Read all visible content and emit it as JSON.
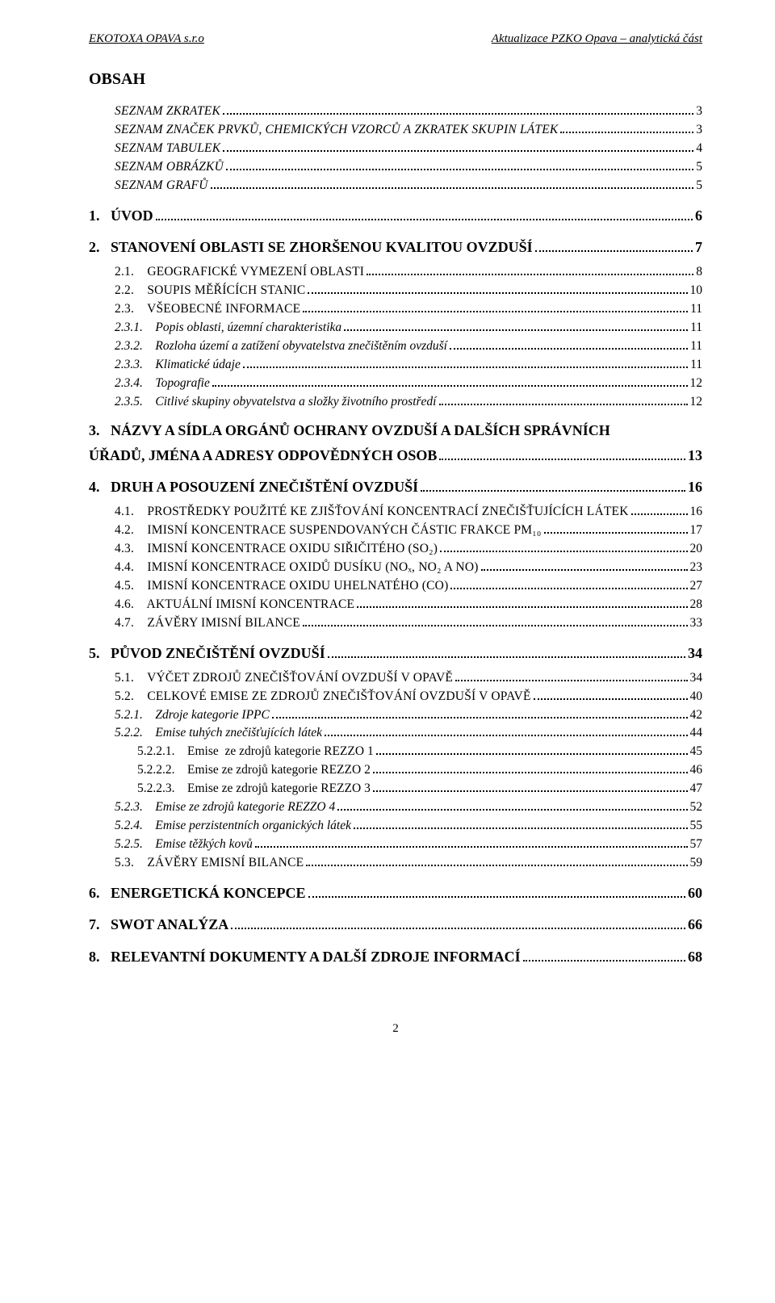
{
  "header": {
    "left": "EKOTOXA OPAVA s.r.o",
    "right": "Aktualizace PZKO Opava – analytická část"
  },
  "title": "OBSAH",
  "toc": [
    {
      "level": 0,
      "label": "SEZNAM ZKRATEK",
      "page": "3",
      "style": "smallcaps italic"
    },
    {
      "level": 0,
      "label": "SEZNAM ZNAČEK PRVKŮ, CHEMICKÝCH VZORCŮ A ZKRATEK SKUPIN LÁTEK",
      "page": "3",
      "style": "smallcaps italic"
    },
    {
      "level": 0,
      "label": "SEZNAM TABULEK",
      "page": "4",
      "style": "smallcaps italic"
    },
    {
      "level": 0,
      "label": "SEZNAM OBRÁZKŮ",
      "page": "5",
      "style": "smallcaps italic"
    },
    {
      "level": 0,
      "label": "SEZNAM GRAFŮ",
      "page": "5",
      "style": "smallcaps italic"
    },
    {
      "level": "h1",
      "num": "1.",
      "label": "ÚVOD",
      "page": "6"
    },
    {
      "level": "h1",
      "num": "2.",
      "label": "STANOVENÍ OBLASTI SE ZHORŠENOU KVALITOU OVZDUŠÍ",
      "page": "7"
    },
    {
      "level": 1,
      "label": "2.1.    GEOGRAFICKÉ VYMEZENÍ OBLASTI",
      "page": "8",
      "style": "smallcaps"
    },
    {
      "level": 1,
      "label": "2.2.    SOUPIS MĚŘÍCÍCH STANIC",
      "page": "10",
      "style": "smallcaps"
    },
    {
      "level": 1,
      "label": "2.3.    VŠEOBECNÉ INFORMACE",
      "page": "11",
      "style": "smallcaps"
    },
    {
      "level": 2,
      "label": "2.3.1.    Popis oblasti, územní charakteristika",
      "page": "11",
      "style": "italic"
    },
    {
      "level": 2,
      "label": "2.3.2.    Rozloha území a zatížení obyvatelstva znečištěním ovzduší",
      "page": "11",
      "style": "italic"
    },
    {
      "level": 2,
      "label": "2.3.3.    Klimatické údaje",
      "page": "11",
      "style": "italic"
    },
    {
      "level": 2,
      "label": "2.3.4.    Topografie",
      "page": "12",
      "style": "italic"
    },
    {
      "level": 2,
      "label": "2.3.5.    Citlivé skupiny obyvatelstva a složky životního prostředí",
      "page": "12",
      "style": "italic"
    },
    {
      "level": "h1",
      "num": "3.",
      "label": "NÁZVY A SÍDLA ORGÁNŮ OCHRANY OVZDUŠÍ A DALŠÍCH SPRÁVNÍCH",
      "page": "",
      "cont": true
    },
    {
      "level": "h1cont",
      "label": "ÚŘADŮ, JMÉNA A ADRESY ODPOVĚDNÝCH OSOB",
      "page": "13"
    },
    {
      "level": "h1",
      "num": "4.",
      "label": "DRUH A POSOUZENÍ ZNEČIŠTĚNÍ OVZDUŠÍ",
      "page": "16"
    },
    {
      "level": 1,
      "label": "4.1.    PROSTŘEDKY POUŽITÉ KE ZJIŠŤOVÁNÍ KONCENTRACÍ ZNEČIŠŤUJÍCÍCH LÁTEK",
      "page": "16",
      "style": "smallcaps"
    },
    {
      "level": 1,
      "label": "4.2.    IMISNÍ KONCENTRACE SUSPENDOVANÝCH ČÁSTIC FRAKCE PM₁₀",
      "page": "17",
      "style": "smallcaps"
    },
    {
      "level": 1,
      "label": "4.3.    IMISNÍ KONCENTRACE OXIDU SIŘIČITÉHO (SO₂)",
      "page": "20",
      "style": "smallcaps"
    },
    {
      "level": 1,
      "label": "4.4.    IMISNÍ KONCENTRACE OXIDŮ DUSÍKU (NOₓ, NO₂ A NO)",
      "page": "23",
      "style": "smallcaps"
    },
    {
      "level": 1,
      "label": "4.5.    IMISNÍ KONCENTRACE OXIDU UHELNATÉHO (CO)",
      "page": "27",
      "style": "smallcaps"
    },
    {
      "level": 1,
      "label": "4.6.    AKTUÁLNÍ IMISNÍ KONCENTRACE",
      "page": "28",
      "style": "smallcaps"
    },
    {
      "level": 1,
      "label": "4.7.    ZÁVĚRY IMISNÍ BILANCE",
      "page": "33",
      "style": "smallcaps"
    },
    {
      "level": "h1",
      "num": "5.",
      "label": "PŮVOD ZNEČIŠTĚNÍ OVZDUŠÍ",
      "page": "34"
    },
    {
      "level": 1,
      "label": "5.1.    VÝČET ZDROJŮ ZNEČIŠŤOVÁNÍ OVZDUŠÍ V OPAVĚ",
      "page": "34",
      "style": "smallcaps"
    },
    {
      "level": 1,
      "label": "5.2.    CELKOVÉ EMISE ZE ZDROJŮ ZNEČIŠŤOVÁNÍ OVZDUŠÍ V OPAVĚ",
      "page": "40",
      "style": "smallcaps"
    },
    {
      "level": 2,
      "label": "5.2.1.    Zdroje kategorie IPPC",
      "page": "42",
      "style": "italic"
    },
    {
      "level": 2,
      "label": "5.2.2.    Emise tuhých znečišťujících látek",
      "page": "44",
      "style": "italic"
    },
    {
      "level": 3,
      "label": "5.2.2.1.    Emise  ze zdrojů kategorie REZZO 1",
      "page": "45",
      "style": ""
    },
    {
      "level": 3,
      "label": "5.2.2.2.    Emise ze zdrojů kategorie REZZO 2",
      "page": "46",
      "style": ""
    },
    {
      "level": 3,
      "label": "5.2.2.3.    Emise ze zdrojů kategorie REZZO 3",
      "page": "47",
      "style": ""
    },
    {
      "level": 2,
      "label": "5.2.3.    Emise ze zdrojů kategorie REZZO 4",
      "page": "52",
      "style": "italic"
    },
    {
      "level": 2,
      "label": "5.2.4.    Emise perzistentních organických látek",
      "page": "55",
      "style": "italic"
    },
    {
      "level": 2,
      "label": "5.2.5.    Emise těžkých kovů",
      "page": "57",
      "style": "italic"
    },
    {
      "level": 1,
      "label": "5.3.    ZÁVĚRY EMISNÍ BILANCE",
      "page": "59",
      "style": "smallcaps"
    },
    {
      "level": "h1",
      "num": "6.",
      "label": "ENERGETICKÁ KONCEPCE",
      "page": "60"
    },
    {
      "level": "h1",
      "num": "7.",
      "label": "SWOT ANALÝZA",
      "page": "66"
    },
    {
      "level": "h1",
      "num": "8.",
      "label": "RELEVANTNÍ DOKUMENTY A DALŠÍ ZDROJE INFORMACÍ",
      "page": "68"
    }
  ],
  "pageNumber": "2"
}
